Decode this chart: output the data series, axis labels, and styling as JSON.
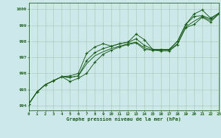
{
  "title": "Graphe pression niveau de la mer (hPa)",
  "bg_color": "#cce8e8",
  "grid_color": "#aaccbb",
  "line_color": "#1a5c1a",
  "x_hours": [
    0,
    1,
    2,
    3,
    4,
    5,
    6,
    7,
    8,
    9,
    10,
    11,
    12,
    13,
    14,
    15,
    16,
    17,
    18,
    19,
    20,
    21,
    22,
    23
  ],
  "series_1": [
    994.1,
    994.85,
    995.3,
    995.55,
    995.8,
    995.75,
    995.85,
    996.6,
    997.1,
    997.35,
    997.55,
    997.7,
    997.85,
    997.95,
    997.6,
    997.45,
    997.45,
    997.45,
    997.85,
    998.9,
    999.25,
    999.55,
    999.3,
    999.7
  ],
  "series_2": [
    994.1,
    994.85,
    995.3,
    995.55,
    995.8,
    995.75,
    995.85,
    996.8,
    997.3,
    997.55,
    997.7,
    997.85,
    997.95,
    998.15,
    997.75,
    997.5,
    997.5,
    997.5,
    998.0,
    999.05,
    999.55,
    999.6,
    999.4,
    999.75
  ],
  "series_3": [
    994.1,
    994.85,
    995.3,
    995.55,
    995.8,
    995.85,
    996.0,
    997.25,
    997.65,
    997.85,
    997.7,
    997.85,
    997.95,
    998.45,
    998.1,
    997.5,
    997.5,
    997.5,
    998.0,
    999.05,
    999.7,
    999.95,
    999.45,
    999.75
  ],
  "series_4": [
    994.1,
    994.85,
    995.3,
    995.55,
    995.8,
    995.5,
    995.7,
    996.0,
    996.7,
    997.2,
    997.45,
    997.65,
    997.8,
    997.9,
    997.5,
    997.45,
    997.4,
    997.4,
    997.8,
    998.85,
    999.05,
    999.5,
    999.2,
    999.7
  ],
  "markers_1": [
    0,
    1,
    2,
    3,
    4,
    5,
    6,
    7,
    8,
    9,
    10,
    11,
    12,
    13,
    14,
    15,
    16,
    17,
    18,
    19,
    20,
    21,
    22,
    23
  ],
  "markers_3": [
    7,
    8,
    9,
    10,
    11,
    12,
    13,
    14,
    15,
    16,
    17,
    18,
    19,
    20,
    21,
    22,
    23
  ],
  "ylim": [
    993.7,
    1000.4
  ],
  "yticks": [
    994,
    995,
    996,
    997,
    998,
    999,
    1000
  ],
  "xlim": [
    0,
    23
  ],
  "xticks": [
    0,
    1,
    2,
    3,
    4,
    5,
    6,
    7,
    8,
    9,
    10,
    11,
    12,
    13,
    14,
    15,
    16,
    17,
    18,
    19,
    20,
    21,
    22,
    23
  ]
}
